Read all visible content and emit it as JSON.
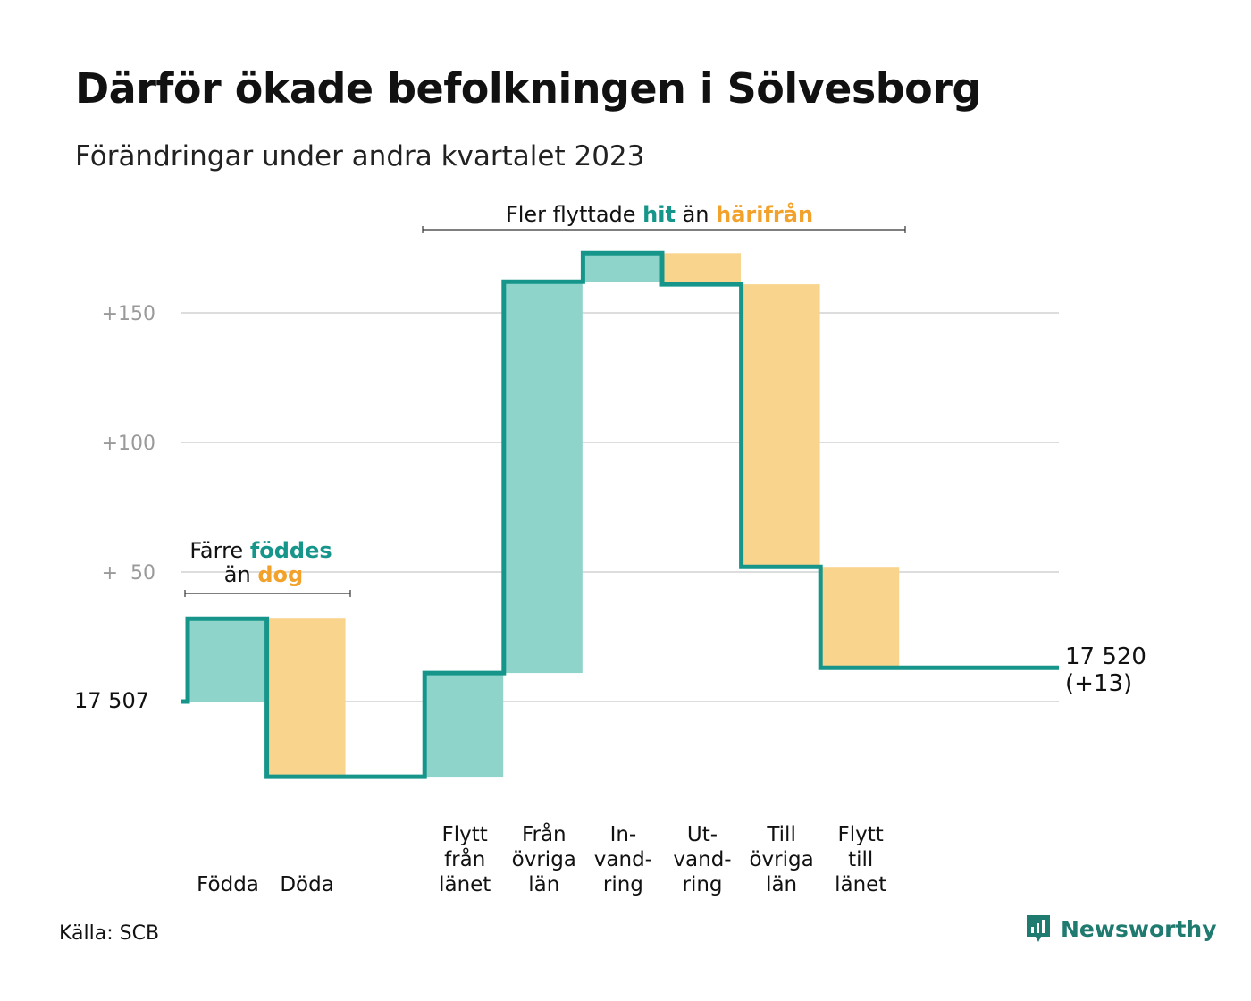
{
  "title": "Därför ökade befolkningen i Sölvesborg",
  "subtitle": "Förändringar under andra kvartalet 2023",
  "source": "Källa: SCB",
  "brand": "Newsworthy",
  "colors": {
    "increase": "#8ed4cb",
    "decrease": "#f9d48d",
    "line": "#16968a",
    "highlight_hit": "#16968a",
    "highlight_harifran": "#f2a22b",
    "grid": "#dddddd",
    "tick": "#9a9a9a"
  },
  "annotations": {
    "births": {
      "line1_pre": "Färre ",
      "line1_em": "föddes",
      "line2_pre": "än ",
      "line2_em": "dog"
    },
    "migration": {
      "pre": "Fler flyttade ",
      "em1": "hit",
      "mid": " än ",
      "em2": "härifrån"
    }
  },
  "chart_data": {
    "type": "waterfall",
    "start": {
      "value": 17507,
      "label": "17  507"
    },
    "end": {
      "value": 17520,
      "label": "17 520",
      "change_label": "(+13)"
    },
    "yaxis": {
      "ylim": [
        -30,
        185
      ],
      "ticks": [
        {
          "value": 50,
          "label": "+  50"
        },
        {
          "value": 100,
          "label": "+100"
        },
        {
          "value": 150,
          "label": "+150"
        }
      ],
      "grid": true
    },
    "categories": [
      {
        "label": "Födda",
        "lines": [
          "Födda"
        ],
        "change": 32
      },
      {
        "label": "Döda",
        "lines": [
          "Döda"
        ],
        "change": -61
      },
      {
        "label": "Flytt från länet",
        "lines": [
          "Flytt",
          "från",
          "länet"
        ],
        "change": 40
      },
      {
        "label": "Från övriga län",
        "lines": [
          "Från",
          "övriga",
          "län"
        ],
        "change": 151
      },
      {
        "label": "Invandring",
        "lines": [
          "In-",
          "vand-",
          "ring"
        ],
        "change": 11
      },
      {
        "label": "Utvandring",
        "lines": [
          "Ut-",
          "vand-",
          "ring"
        ],
        "change": -12
      },
      {
        "label": "Till övriga län",
        "lines": [
          "Till",
          "övriga",
          "län"
        ],
        "change": -109
      },
      {
        "label": "Flytt till länet",
        "lines": [
          "Flytt",
          "till",
          "länet"
        ],
        "change": -39
      }
    ],
    "gap_after_index": 1
  }
}
